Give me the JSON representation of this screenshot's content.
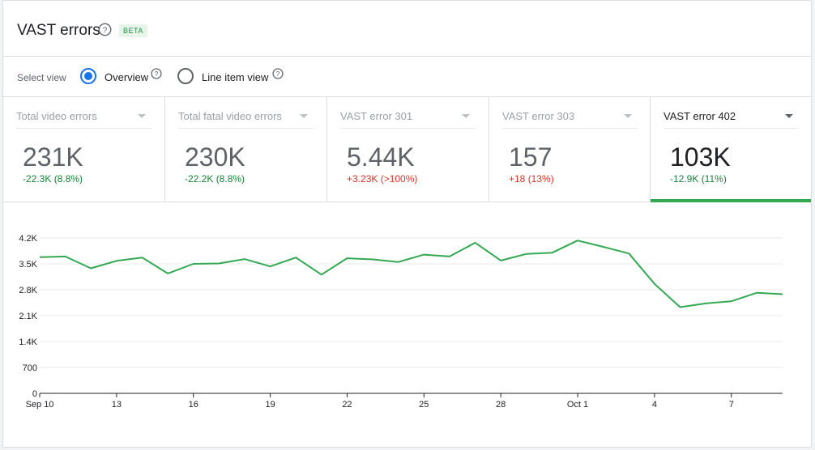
{
  "header": {
    "title": "VAST errors",
    "beta_label": "BETA"
  },
  "view_select": {
    "label": "Select view",
    "options": [
      {
        "label": "Overview",
        "selected": true
      },
      {
        "label": "Line item view",
        "selected": false
      }
    ]
  },
  "metrics": [
    {
      "name": "Total video errors",
      "value": "231K",
      "delta": "-22.3K (8.8%)",
      "delta_status": "good",
      "active": false
    },
    {
      "name": "Total fatal video errors",
      "value": "230K",
      "delta": "-22.2K (8.8%)",
      "delta_status": "good",
      "active": false
    },
    {
      "name": "VAST error 301",
      "value": "5.44K",
      "delta": "+3.23K (>100%)",
      "delta_status": "bad",
      "active": false
    },
    {
      "name": "VAST error 303",
      "value": "157",
      "delta": "+18 (13%)",
      "delta_status": "bad",
      "active": false
    },
    {
      "name": "VAST error 402",
      "value": "103K",
      "delta": "-12.9K (11%)",
      "delta_status": "good",
      "active": true
    }
  ],
  "colors": {
    "accent_blue": "#1a73e8",
    "line_green": "#34a853",
    "delta_good": "#188038",
    "delta_bad": "#d93025"
  },
  "chart_data": {
    "type": "line",
    "y_ticks": [
      "0",
      "700",
      "1.4K",
      "2.1K",
      "2.8K",
      "3.5K",
      "4.2K"
    ],
    "y_tick_values": [
      0,
      700,
      1400,
      2100,
      2800,
      3500,
      4200
    ],
    "ylim": [
      0,
      4200
    ],
    "x_tick_labels": [
      {
        "index": 0,
        "label": "Sep 10"
      },
      {
        "index": 3,
        "label": "13"
      },
      {
        "index": 6,
        "label": "16"
      },
      {
        "index": 9,
        "label": "19"
      },
      {
        "index": 12,
        "label": "22"
      },
      {
        "index": 15,
        "label": "25"
      },
      {
        "index": 18,
        "label": "28"
      },
      {
        "index": 21,
        "label": "Oct 1"
      },
      {
        "index": 24,
        "label": "4"
      },
      {
        "index": 27,
        "label": "7"
      }
    ],
    "x": [
      "Sep 10",
      "Sep 11",
      "Sep 12",
      "Sep 13",
      "Sep 14",
      "Sep 15",
      "Sep 16",
      "Sep 17",
      "Sep 18",
      "Sep 19",
      "Sep 20",
      "Sep 21",
      "Sep 22",
      "Sep 23",
      "Sep 24",
      "Sep 25",
      "Sep 26",
      "Sep 27",
      "Sep 28",
      "Sep 29",
      "Sep 30",
      "Oct 1",
      "Oct 2",
      "Oct 3",
      "Oct 4",
      "Oct 5",
      "Oct 6",
      "Oct 7",
      "Oct 8",
      "Oct 9"
    ],
    "series": [
      {
        "color": "#34a853",
        "values": [
          3680,
          3700,
          3380,
          3580,
          3670,
          3240,
          3500,
          3510,
          3630,
          3430,
          3670,
          3210,
          3650,
          3620,
          3550,
          3750,
          3700,
          4070,
          3590,
          3770,
          3800,
          4130,
          3960,
          3780,
          2960,
          2330,
          2430,
          2490,
          2720,
          2680
        ]
      }
    ],
    "grid": true
  }
}
